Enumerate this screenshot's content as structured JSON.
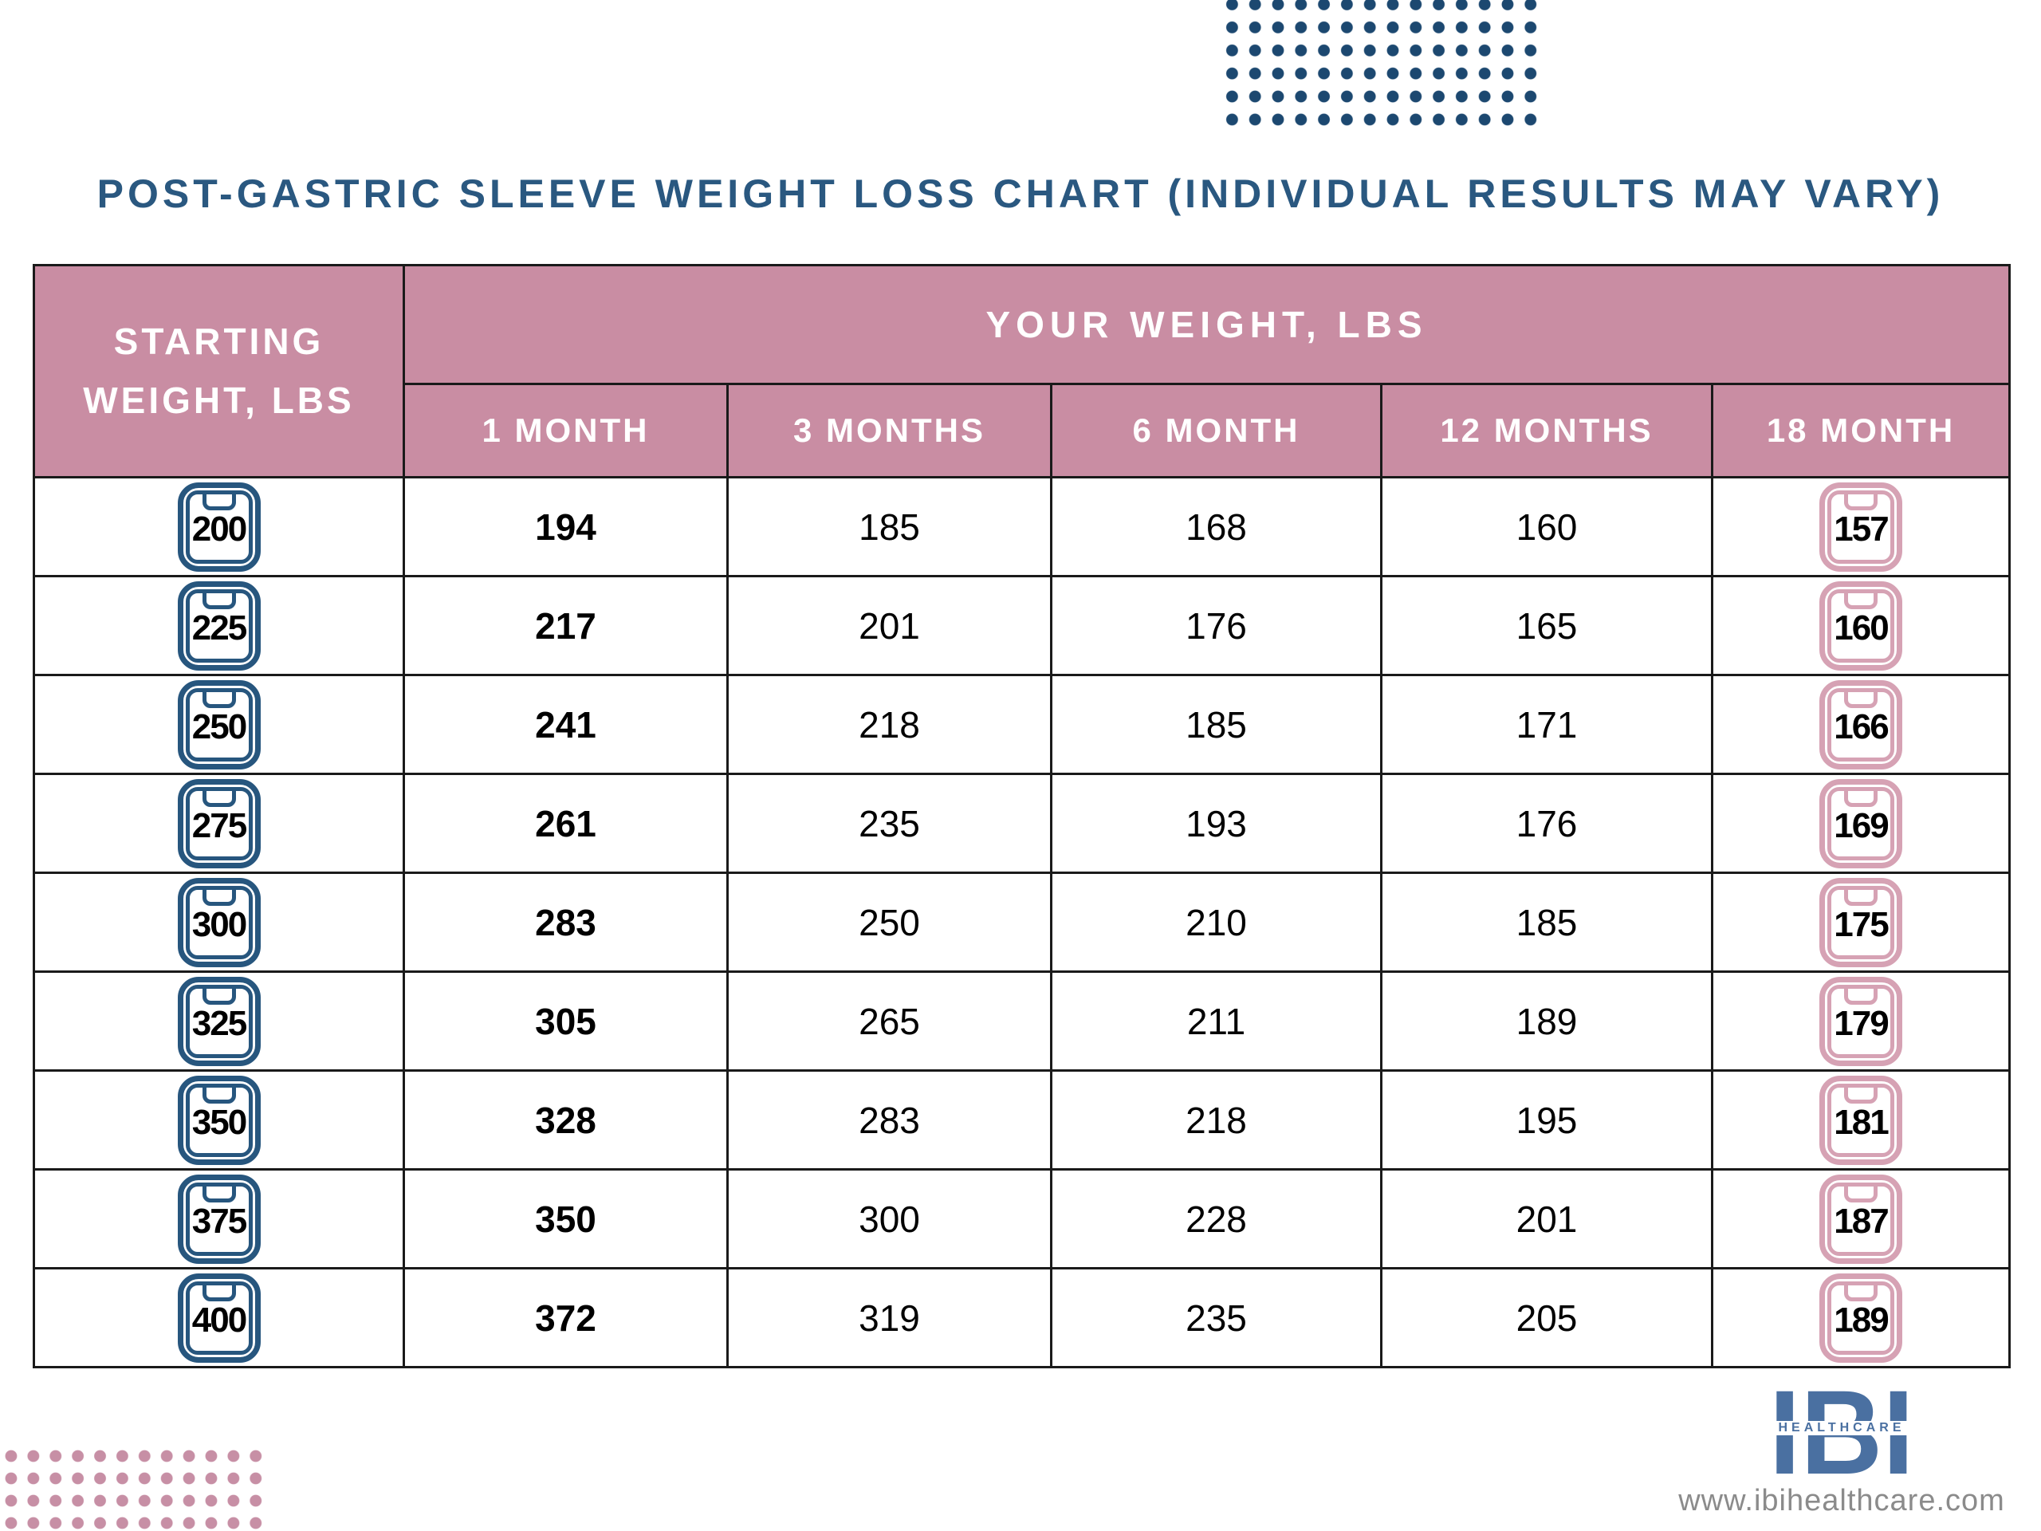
{
  "title": "POST-GASTRIC SLEEVE WEIGHT LOSS CHART (INDIVIDUAL RESULTS MAY VARY)",
  "table": {
    "starting_header": [
      "STARTING",
      "WEIGHT, LBS"
    ],
    "group_header": "YOUR WEIGHT, LBS",
    "month_headers": [
      "1 MONTH",
      "3 MONTHS",
      "6 MONTH",
      "12 MONTHS",
      "18 MONTH"
    ],
    "rows": [
      {
        "start": "200",
        "m1": "194",
        "m3": "185",
        "m6": "168",
        "m12": "160",
        "m18": "157"
      },
      {
        "start": "225",
        "m1": "217",
        "m3": "201",
        "m6": "176",
        "m12": "165",
        "m18": "160"
      },
      {
        "start": "250",
        "m1": "241",
        "m3": "218",
        "m6": "185",
        "m12": "171",
        "m18": "166"
      },
      {
        "start": "275",
        "m1": "261",
        "m3": "235",
        "m6": "193",
        "m12": "176",
        "m18": "169"
      },
      {
        "start": "300",
        "m1": "283",
        "m3": "250",
        "m6": "210",
        "m12": "185",
        "m18": "175"
      },
      {
        "start": "325",
        "m1": "305",
        "m3": "265",
        "m6": "211",
        "m12": "189",
        "m18": "179"
      },
      {
        "start": "350",
        "m1": "328",
        "m3": "283",
        "m6": "218",
        "m12": "195",
        "m18": "181"
      },
      {
        "start": "375",
        "m1": "350",
        "m3": "300",
        "m6": "228",
        "m12": "201",
        "m18": "187"
      },
      {
        "start": "400",
        "m1": "372",
        "m3": "319",
        "m6": "235",
        "m12": "205",
        "m18": "189"
      }
    ]
  },
  "chart_data": {
    "type": "table",
    "title": "POST-GASTRIC SLEEVE WEIGHT LOSS CHART (INDIVIDUAL RESULTS MAY VARY)",
    "row_group_label": "STARTING WEIGHT, LBS",
    "column_group_label": "YOUR WEIGHT, LBS",
    "columns": [
      "1 MONTH",
      "3 MONTHS",
      "6 MONTH",
      "12 MONTHS",
      "18 MONTH"
    ],
    "starting_weights": [
      200,
      225,
      250,
      275,
      300,
      325,
      350,
      375,
      400
    ],
    "series": [
      {
        "name": "1 MONTH",
        "values": [
          194,
          217,
          241,
          261,
          283,
          305,
          328,
          350,
          372
        ]
      },
      {
        "name": "3 MONTHS",
        "values": [
          185,
          201,
          218,
          235,
          250,
          265,
          283,
          300,
          319
        ]
      },
      {
        "name": "6 MONTH",
        "values": [
          168,
          176,
          185,
          193,
          210,
          211,
          218,
          228,
          235
        ]
      },
      {
        "name": "12 MONTHS",
        "values": [
          160,
          165,
          171,
          176,
          185,
          189,
          195,
          201,
          205
        ]
      },
      {
        "name": "18 MONTH",
        "values": [
          157,
          160,
          166,
          169,
          175,
          179,
          181,
          187,
          189
        ]
      }
    ]
  },
  "footer": {
    "logo_main": "IBI",
    "logo_sub": "HEALTHCARE",
    "website": "www.ibihealthcare.com"
  },
  "colors": {
    "header_pink": "#C98DA3",
    "icon_pink": "#D6A2B4",
    "icon_blue": "#27567E",
    "title_blue": "#2A5880",
    "dot_blue": "#1C4870",
    "dot_pink": "#C78FA5",
    "logo_blue": "#4A70A1",
    "website_gray": "#8B8B8B"
  }
}
